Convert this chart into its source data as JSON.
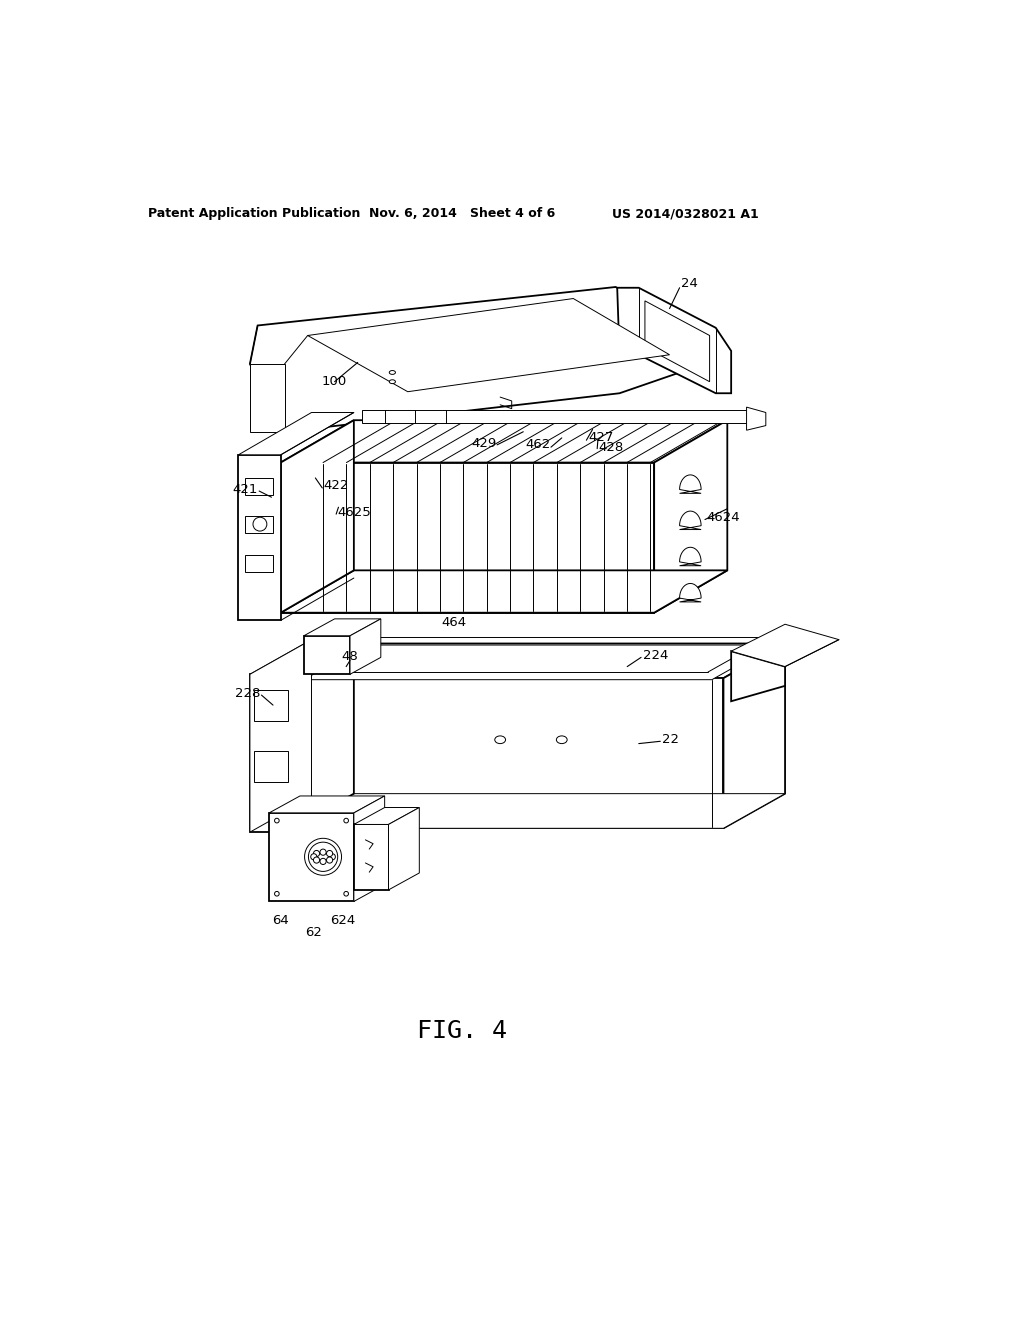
{
  "header_left": "Patent Application Publication",
  "header_mid": "Nov. 6, 2014   Sheet 4 of 6",
  "header_right": "US 2014/0328021 A1",
  "figure_label": "FIG. 4",
  "background_color": "#ffffff",
  "line_color": "#000000",
  "fig_width": 10.24,
  "fig_height": 13.2,
  "dpi": 100,
  "lw_main": 1.3,
  "lw_thin": 0.7,
  "lw_med": 1.0
}
